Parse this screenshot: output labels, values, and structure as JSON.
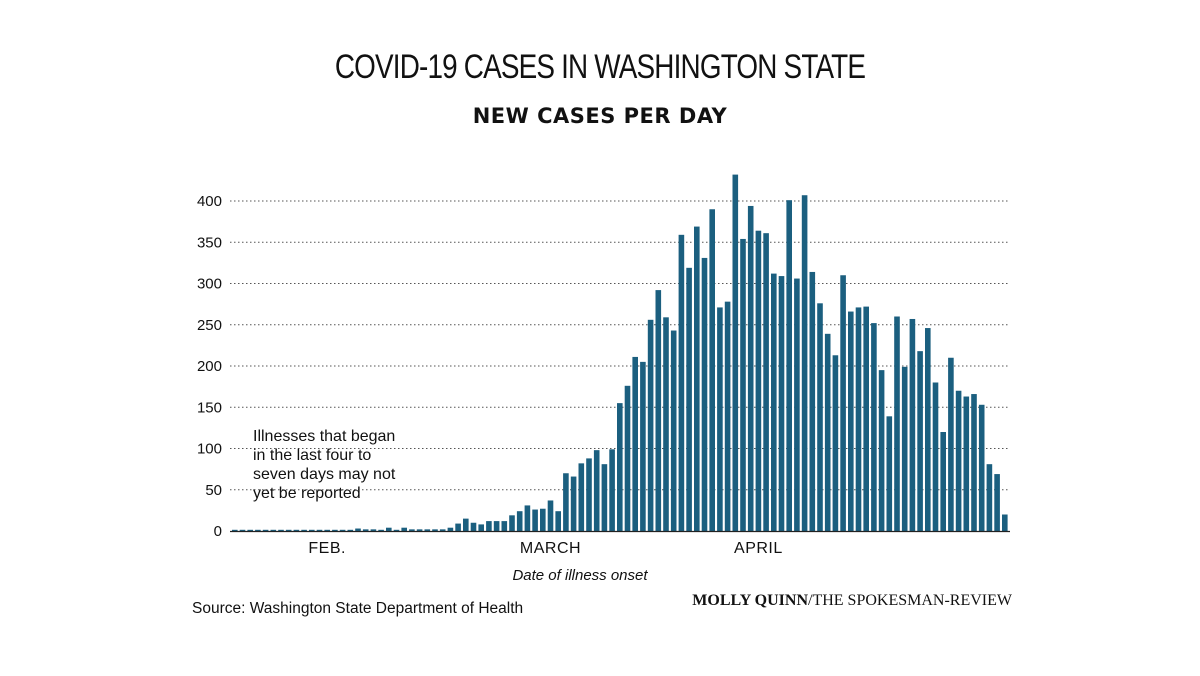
{
  "title": "COVID-19 CASES IN WASHINGTON STATE",
  "subtitle": "NEW CASES PER DAY",
  "source": "Source: Washington State Department of Health",
  "credit": {
    "author": "MOLLY QUINN",
    "separator": "/",
    "outlet": "THE SPOKESMAN-REVIEW"
  },
  "chart_data": {
    "type": "bar",
    "title": "COVID-19 CASES IN WASHINGTON STATE",
    "subtitle": "NEW CASES PER DAY",
    "xlabel": "Date of illness onset",
    "ylabel": "",
    "ylim": [
      0,
      440
    ],
    "yticks": [
      0,
      50,
      100,
      150,
      200,
      250,
      300,
      350,
      400
    ],
    "grid": "horizontal dotted",
    "bar_color": "#1b5f7f",
    "month_labels": [
      "FEB.",
      "MARCH",
      "APRIL"
    ],
    "month_label_positions": [
      12,
      41,
      68
    ],
    "annotation": [
      "Illnesses that began",
      "in the last four to",
      "seven days may not",
      "yet be reported"
    ],
    "values": [
      1,
      0,
      0,
      1,
      0,
      0,
      1,
      0,
      0,
      1,
      0,
      0,
      0,
      1,
      0,
      1,
      3,
      2,
      2,
      0,
      4,
      0,
      4,
      2,
      2,
      2,
      2,
      2,
      4,
      9,
      15,
      10,
      8,
      12,
      12,
      12,
      19,
      24,
      31,
      26,
      27,
      37,
      24,
      70,
      66,
      82,
      88,
      98,
      81,
      99,
      155,
      176,
      211,
      205,
      256,
      292,
      259,
      243,
      359,
      319,
      369,
      331,
      390,
      271,
      278,
      432,
      354,
      394,
      364,
      361,
      312,
      309,
      401,
      306,
      407,
      314,
      276,
      239,
      213,
      310,
      266,
      271,
      272,
      252,
      195,
      139,
      260,
      199,
      257,
      218,
      246,
      180,
      120,
      210,
      170,
      163,
      166,
      153,
      81,
      69,
      20
    ]
  }
}
